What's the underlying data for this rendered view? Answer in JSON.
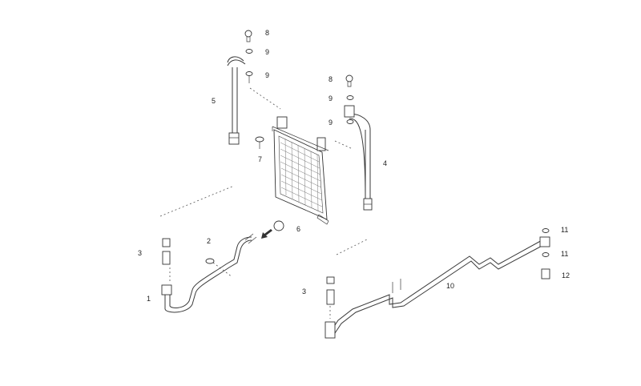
{
  "labels": {
    "l1": "1",
    "l2": "2",
    "l3a": "3",
    "l3b": "3",
    "l4": "4",
    "l5": "5",
    "l6": "6",
    "l7": "7",
    "l8a": "8",
    "l8b": "8",
    "l9a": "9",
    "l9b": "9",
    "l9c": "9",
    "l9d": "9",
    "l10": "10",
    "l11a": "11",
    "l11b": "11",
    "l12": "12"
  }
}
